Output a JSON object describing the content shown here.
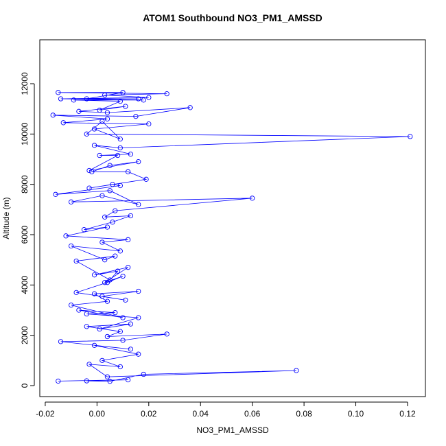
{
  "chart_data": {
    "type": "line",
    "title": "ATOM1 Southbound NO3_PM1_AMSSD",
    "x_label": "NO3_PM1_AMSSD",
    "y_label": "Altitude (m)",
    "color": "#0000ff",
    "markers": true,
    "grid": false,
    "x": [
      -0.015,
      0.012,
      -0.004,
      0.005,
      0.018,
      0.077,
      0.004,
      -0.003,
      0.009,
      0.002,
      0.016,
      -0.001,
      0.013,
      -0.014,
      0.01,
      0.027,
      0.004,
      0.009,
      -0.004,
      0.013,
      0.001,
      0.016,
      -0.004,
      0.007,
      -0.007,
      0.01,
      -0.01,
      0.004,
      -0.001,
      0.016,
      0.002,
      0.011,
      -0.008,
      0.004,
      0.01,
      0.003,
      0.012,
      -0.001,
      0.008,
      0.005,
      -0.008,
      0.007,
      0.003,
      -0.01,
      0.009,
      0.002,
      0.012,
      -0.012,
      0.004,
      -0.005,
      0.006,
      0.013,
      0.003,
      0.007,
      0.06,
      -0.01,
      0.002,
      0.016,
      0.005,
      -0.016,
      0.009,
      0.006,
      -0.003,
      0.019,
      0.012,
      -0.002,
      0.005,
      0.016,
      -0.003,
      0.008,
      0.001,
      0.013,
      -0.001,
      0.009,
      0.121,
      -0.004,
      0.002,
      0.009,
      -0.001,
      0.02,
      -0.013,
      0.004,
      -0.017,
      0.015,
      0.036,
      0.004,
      -0.007,
      0.011,
      0.001,
      0.009,
      -0.009,
      0.018,
      -0.014,
      0.02,
      0.003,
      0.027,
      -0.015,
      0.01,
      -0.004,
      0.016
    ],
    "values": [
      180,
      230,
      190,
      170,
      450,
      600,
      350,
      850,
      750,
      1000,
      1250,
      1600,
      1450,
      1750,
      1800,
      2050,
      1950,
      2150,
      2350,
      2450,
      2250,
      2700,
      2850,
      2900,
      3000,
      2700,
      3200,
      3350,
      3650,
      3750,
      3550,
      3400,
      3700,
      4100,
      4350,
      4100,
      4700,
      4400,
      4550,
      4200,
      4950,
      5150,
      5000,
      5550,
      5350,
      5700,
      5800,
      5950,
      6300,
      6200,
      6500,
      6750,
      6700,
      6950,
      7450,
      7300,
      7550,
      7200,
      7750,
      7600,
      7950,
      8000,
      7850,
      8200,
      8500,
      8500,
      8750,
      8900,
      8550,
      9150,
      9150,
      9200,
      9550,
      9450,
      9900,
      10000,
      10500,
      9800,
      10200,
      10400,
      10450,
      10600,
      10750,
      10700,
      11050,
      10850,
      10900,
      11100,
      10950,
      11300,
      11350,
      11350,
      11400,
      11450,
      11550,
      11600,
      11650,
      11650,
      11400,
      11400
    ],
    "xlim": [
      -0.0221,
      0.1269
    ],
    "ylim": [
      -436,
      13745
    ],
    "xticks": [
      -0.02,
      {
        "value": 0,
        "label": "0.00"
      },
      0.02,
      0.04,
      0.06,
      0.08,
      {
        "value": 0.1,
        "label": "0.10"
      },
      0.12
    ],
    "yticks": [
      0,
      2000,
      4000,
      6000,
      8000,
      10000,
      12000
    ]
  }
}
